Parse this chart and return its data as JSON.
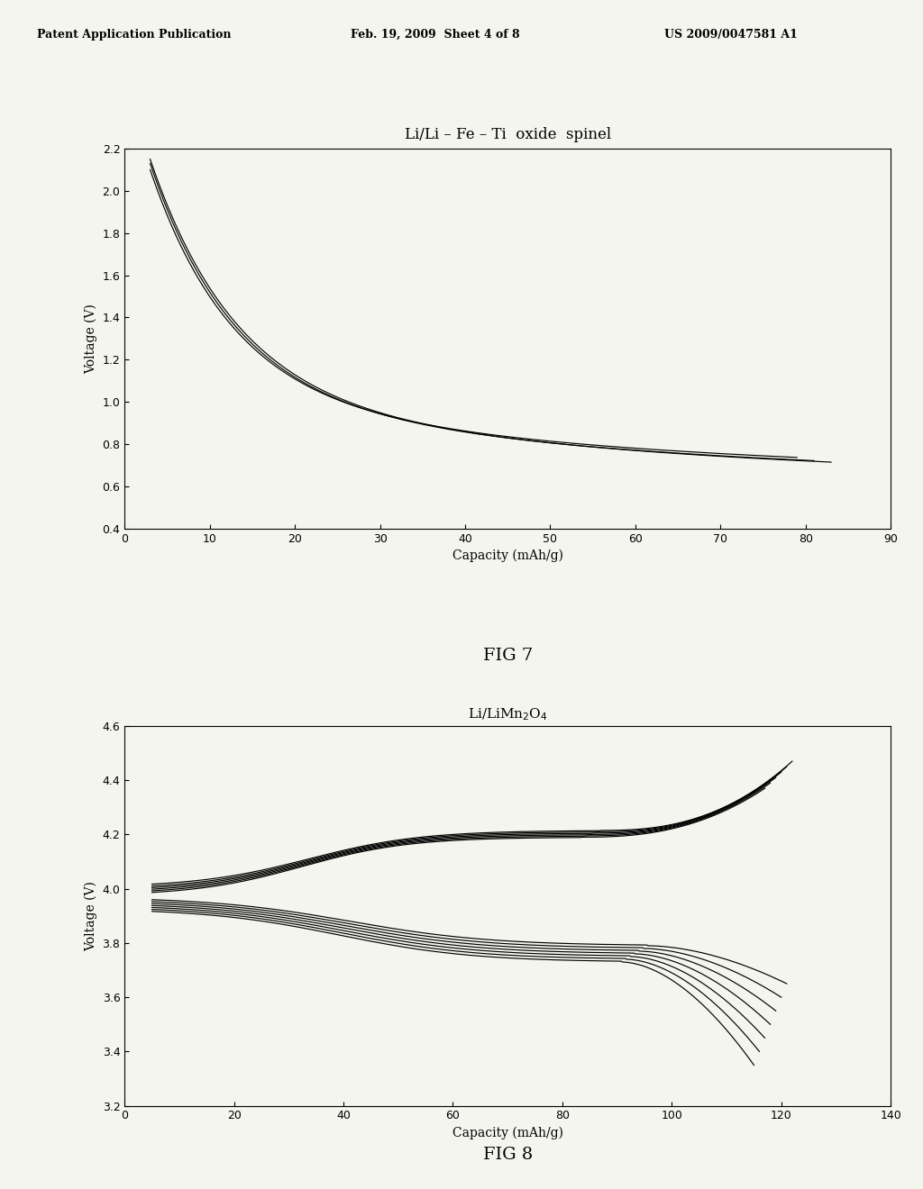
{
  "header_text": "Patent Application Publication    Feb. 19, 2009  Sheet 4 of 8        US 2009/0047581 A1",
  "fig7_title": "Li/Li – Fe – Ti  oxide  spinel",
  "fig7_xlabel": "Capacity (mAh/g)",
  "fig7_ylabel": "Voltage (V)",
  "fig7_xlim": [
    0,
    90
  ],
  "fig7_ylim": [
    0.4,
    2.2
  ],
  "fig7_xticks": [
    0,
    10,
    20,
    30,
    40,
    50,
    60,
    70,
    80,
    90
  ],
  "fig7_yticks": [
    0.4,
    0.6,
    0.8,
    1.0,
    1.2,
    1.4,
    1.6,
    1.8,
    2.0,
    2.2
  ],
  "fig7_label": "FIG 7",
  "fig8_title": "Li/LiMn$_2$O$_4$",
  "fig8_xlabel": "Capacity (mAh/g)",
  "fig8_ylabel": "Voltage (V)",
  "fig8_xlim": [
    0,
    140
  ],
  "fig8_ylim": [
    3.2,
    4.6
  ],
  "fig8_xticks": [
    0,
    20,
    40,
    60,
    80,
    100,
    120,
    140
  ],
  "fig8_yticks": [
    3.2,
    3.4,
    3.6,
    3.8,
    4.0,
    4.2,
    4.4,
    4.6
  ],
  "fig8_label": "FIG 8",
  "line_color": "#000000",
  "background_color": "#f5f5f0",
  "n_curves_fig7": 3,
  "n_curves_fig8": 6
}
